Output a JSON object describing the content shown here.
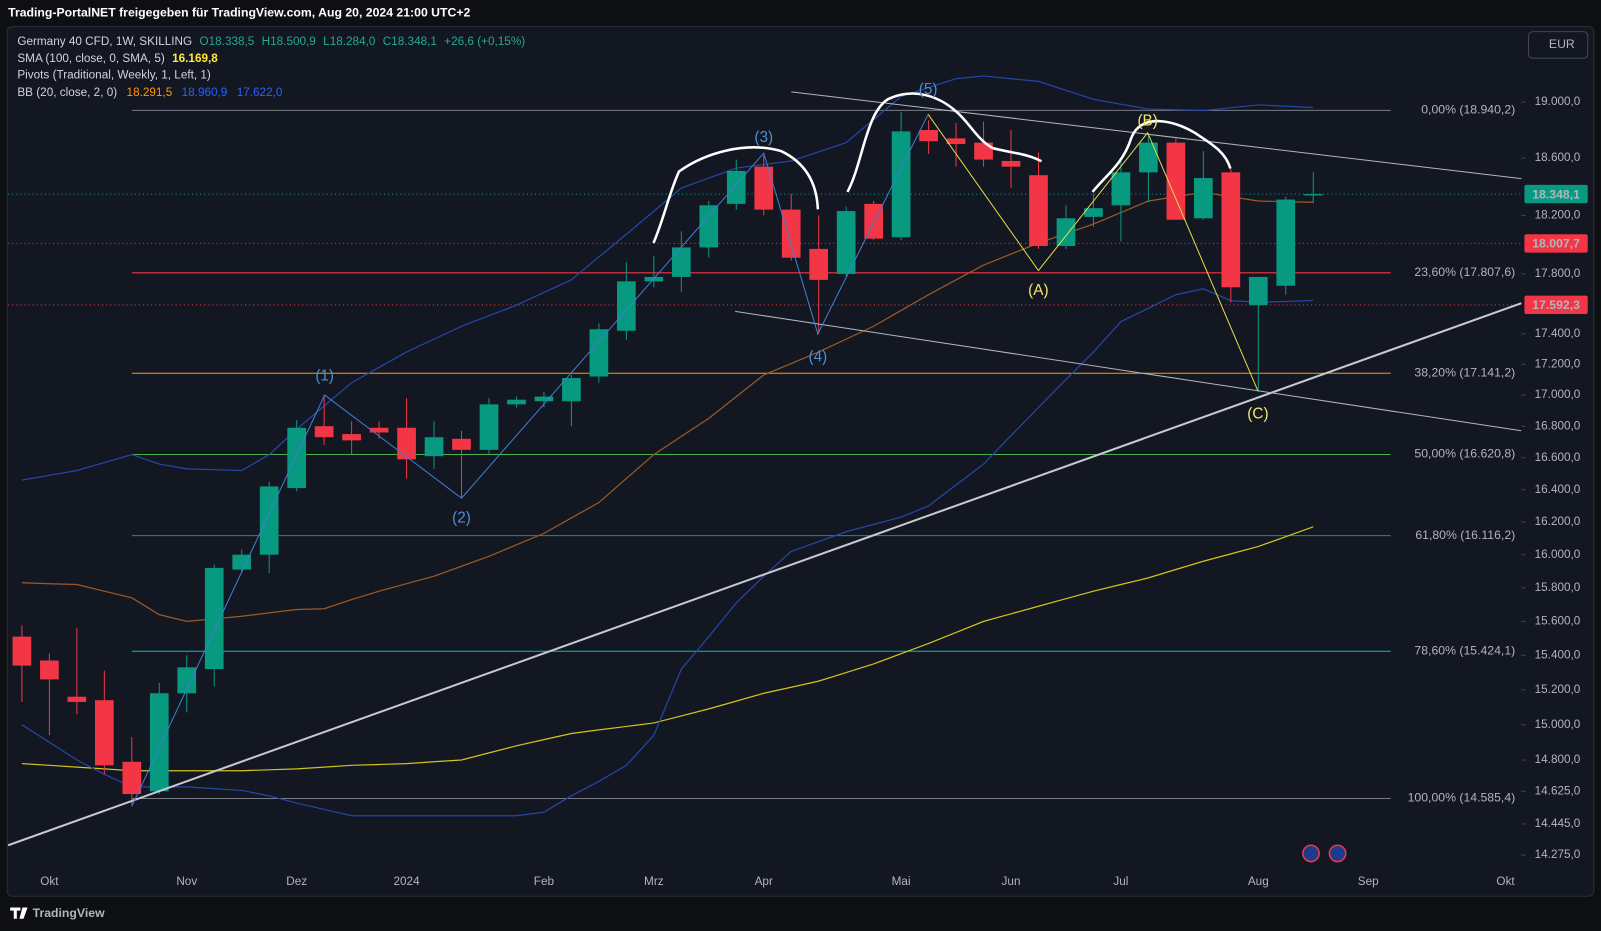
{
  "header": {
    "title": "Trading-PortalNET freigegeben für TradingView.com, Aug 20, 2024 21:00 UTC+2"
  },
  "legend": {
    "symbol": "Germany 40 CFD, 1W, SKILLING",
    "ohlc": [
      "O18.338,5",
      "H18.500,9",
      "L18.284,0",
      "C18.348,1"
    ],
    "change": "+26,6 (+0,15%)",
    "indicators": [
      {
        "name": "SMA (100, close, 0, SMA, 5)",
        "values": [
          "16.169,8"
        ]
      },
      {
        "name": "Pivots (Traditional, Weekly, 1, Left, 1)",
        "values": []
      },
      {
        "name": "BB (20, close, 2, 0)",
        "values": [
          "18.291,5",
          "18.960,9",
          "17.622,0"
        ]
      }
    ]
  },
  "currency": "EUR",
  "brand": "TradingView",
  "chart_data": {
    "type": "candlestick",
    "categories": [
      null,
      "Okt",
      null,
      null,
      null,
      null,
      "Nov",
      null,
      null,
      null,
      "Dez",
      null,
      null,
      null,
      "2024",
      null,
      null,
      null,
      null,
      "Feb",
      null,
      null,
      null,
      "Mrz",
      null,
      null,
      null,
      "Apr",
      null,
      null,
      null,
      null,
      "Mai",
      null,
      null,
      null,
      "Jun",
      null,
      null,
      null,
      "Jul",
      null,
      null,
      null,
      null,
      "Aug",
      null,
      null,
      null,
      "Sep",
      null,
      null,
      null,
      null,
      "Okt"
    ],
    "open": [
      15510,
      15370,
      15160,
      15140,
      14790,
      14625,
      15180,
      15320,
      15910,
      16000,
      16410,
      16800,
      16750,
      16790,
      16790,
      16610,
      16720,
      16650,
      16940,
      16960,
      16960,
      17120,
      17420,
      17750,
      17780,
      17980,
      18280,
      18540,
      18240,
      17970,
      17800,
      18280,
      18050,
      18800,
      18740,
      18710,
      18580,
      18480,
      17990,
      18190,
      18270,
      18500,
      18710,
      18180,
      18500,
      17590,
      17720,
      18338.5,
      null,
      null,
      null,
      null,
      null,
      null,
      null
    ],
    "high": [
      15575,
      15410,
      15560,
      15310,
      14930,
      15240,
      15400,
      15940,
      16030,
      16450,
      16840,
      17000,
      16830,
      16830,
      16980,
      16830,
      16770,
      16980,
      16990,
      17020,
      17130,
      17470,
      17880,
      17920,
      18090,
      18300,
      18590,
      18620,
      18350,
      18200,
      18260,
      18300,
      18930,
      18870,
      18850,
      18860,
      18800,
      18640,
      18270,
      18350,
      18590,
      18760,
      18740,
      18650,
      18540,
      17780,
      18330,
      18500.9,
      null,
      null,
      null,
      null,
      null,
      null,
      null
    ],
    "low": [
      15130,
      14940,
      15060,
      14720,
      14550,
      14610,
      15070,
      15220,
      15890,
      15890,
      16390,
      16680,
      16620,
      16720,
      16470,
      16530,
      16350,
      16620,
      16920,
      16920,
      16800,
      17080,
      17360,
      17710,
      17680,
      17910,
      18240,
      18200,
      17890,
      17400,
      17780,
      18030,
      18030,
      18630,
      18540,
      18540,
      18390,
      17970,
      17970,
      18120,
      18020,
      18290,
      18170,
      18170,
      17610,
      17020,
      17660,
      18284.0,
      null,
      null,
      null,
      null,
      null,
      null,
      null
    ],
    "close": [
      15340,
      15260,
      15130,
      14770,
      14610,
      15180,
      15330,
      15920,
      16000,
      16420,
      16790,
      16730,
      16710,
      16760,
      16590,
      16730,
      16650,
      16940,
      16970,
      16990,
      17110,
      17430,
      17750,
      17780,
      17980,
      18270,
      18510,
      18240,
      17910,
      17760,
      18230,
      18040,
      18790,
      18720,
      18700,
      18590,
      18540,
      17990,
      18180,
      18250,
      18500,
      18710,
      18170,
      18460,
      17710,
      17780,
      18310,
      18348.1,
      null,
      null,
      null,
      null,
      null,
      null,
      null
    ],
    "up_color": "#089981",
    "down_color": "#f23645",
    "lines": [
      {
        "color": "#d4c21f",
        "values": [
          14780,
          14770,
          14760,
          14750,
          14740,
          14740,
          14740,
          14740,
          14740,
          14745,
          14750,
          14760,
          14770,
          14775,
          14780,
          14790,
          14800,
          14840,
          14880,
          14915,
          14950,
          14970,
          14990,
          15010,
          15050,
          15090,
          15135,
          15180,
          15215,
          15250,
          15300,
          15350,
          15410,
          15470,
          15535,
          15600,
          15645,
          15690,
          15735,
          15780,
          15820,
          15860,
          15910,
          15960,
          16005,
          16050,
          16110,
          16169.8,
          null,
          null,
          null,
          null,
          null,
          null,
          null
        ]
      },
      {
        "color": "#9c5a26",
        "values": [
          15830,
          15825,
          15820,
          15780,
          15740,
          15640,
          15600,
          15615,
          15630,
          15650,
          15670,
          15675,
          15730,
          15780,
          15825,
          15870,
          15930,
          15990,
          16060,
          16130,
          16225,
          16320,
          16470,
          16620,
          16735,
          16850,
          16990,
          17130,
          17205,
          17280,
          17365,
          17450,
          17555,
          17660,
          17760,
          17860,
          17935,
          18010,
          18075,
          18140,
          18220,
          18300,
          18330,
          18360,
          18330,
          18300,
          18295,
          18291.5,
          null,
          null,
          null,
          null,
          null,
          null,
          null
        ]
      },
      {
        "color": "#2447a8",
        "values": [
          16460,
          16490,
          16520,
          16570,
          16620,
          16560,
          16530,
          16525,
          16520,
          16620,
          16780,
          16930,
          17080,
          17180,
          17280,
          17365,
          17450,
          17520,
          17590,
          17675,
          17760,
          17915,
          18070,
          18230,
          18390,
          18460,
          18530,
          18555,
          18580,
          18645,
          18710,
          18875,
          19040,
          19105,
          19170,
          19190,
          19170,
          19150,
          19085,
          19020,
          18985,
          18950,
          18945,
          18940,
          18960,
          18980,
          18970,
          18960.9,
          null,
          null,
          null,
          null,
          null,
          null,
          null
        ]
      },
      {
        "color": "#2447a8",
        "values": [
          15000,
          14900,
          14800,
          14720,
          14650,
          14650,
          14650,
          14640,
          14630,
          14600,
          14560,
          14525,
          14490,
          14490,
          14490,
          14490,
          14490,
          14490,
          14490,
          14510,
          14600,
          14680,
          14770,
          14940,
          15320,
          15510,
          15710,
          15870,
          16020,
          16080,
          16140,
          16185,
          16230,
          16300,
          16430,
          16560,
          16740,
          16920,
          17100,
          17280,
          17480,
          17570,
          17660,
          17700,
          17620,
          17610,
          17615,
          17622.0,
          null,
          null,
          null,
          null,
          null,
          null,
          null
        ]
      }
    ],
    "levels": [
      {
        "label": "0,00% (18.940,2)",
        "value": 18940.2,
        "color": "#787b86"
      },
      {
        "label": "23,60% (17.807,6)",
        "value": 17807.6,
        "color": "#f23645"
      },
      {
        "label": "38,20% (17.141,2)",
        "value": 17141.2,
        "color": "#ff9800"
      },
      {
        "label": "50,00% (16.620,8)",
        "value": 16620.8,
        "color": "#4caf50"
      },
      {
        "label": "61,80% (16.116,2)",
        "value": 16116.2,
        "color": "#089981"
      },
      {
        "label": "78,60% (15.424,1)",
        "value": 15424.1,
        "color": "#00bcd4"
      },
      {
        "label": "100,00% (14.585,4)",
        "value": 14585.4,
        "color": "#787b86"
      }
    ],
    "price_labels": [
      {
        "value": 18348.1,
        "label": "18.348,1",
        "color": "#089981"
      },
      {
        "value": 18007.7,
        "label": "18.007,7",
        "color": "#f23645"
      },
      {
        "value": 17592.3,
        "label": "17.592,3",
        "color": "#f23645"
      }
    ],
    "wave_labels": [
      "(1)",
      "(2)",
      "(3)",
      "(4)",
      "(5)",
      "(A)",
      "(B)",
      "(C)"
    ],
    "ylim": [
      14207,
      19538
    ],
    "log": true,
    "grid": false,
    "yticks": [
      {
        "value": 14275,
        "label": "14.275,0"
      },
      {
        "value": 14445,
        "label": "14.445,0"
      },
      {
        "value": 14625,
        "label": "14.625,0"
      },
      {
        "value": 14800,
        "label": "14.800,0"
      },
      {
        "value": 15000,
        "label": "15.000,0"
      },
      {
        "value": 15200,
        "label": "15.200,0"
      },
      {
        "value": 15400,
        "label": "15.400,0"
      },
      {
        "value": 15600,
        "label": "15.600,0"
      },
      {
        "value": 15800,
        "label": "15.800,0"
      },
      {
        "value": 16000,
        "label": "16.000,0"
      },
      {
        "value": 16200,
        "label": "16.200,0"
      },
      {
        "value": 16400,
        "label": "16.400,0"
      },
      {
        "value": 16600,
        "label": "16.600,0"
      },
      {
        "value": 16800,
        "label": "16.800,0"
      },
      {
        "value": 17000,
        "label": "17.000,0"
      },
      {
        "value": 17200,
        "label": "17.200,0"
      },
      {
        "value": 17400,
        "label": "17.400,0"
      },
      {
        "value": 17800,
        "label": "17.800,0"
      },
      {
        "value": 18200,
        "label": "18.200,0"
      },
      {
        "value": 18600,
        "label": "18.600,0"
      },
      {
        "value": 19000,
        "label": "19.000,0"
      }
    ]
  }
}
